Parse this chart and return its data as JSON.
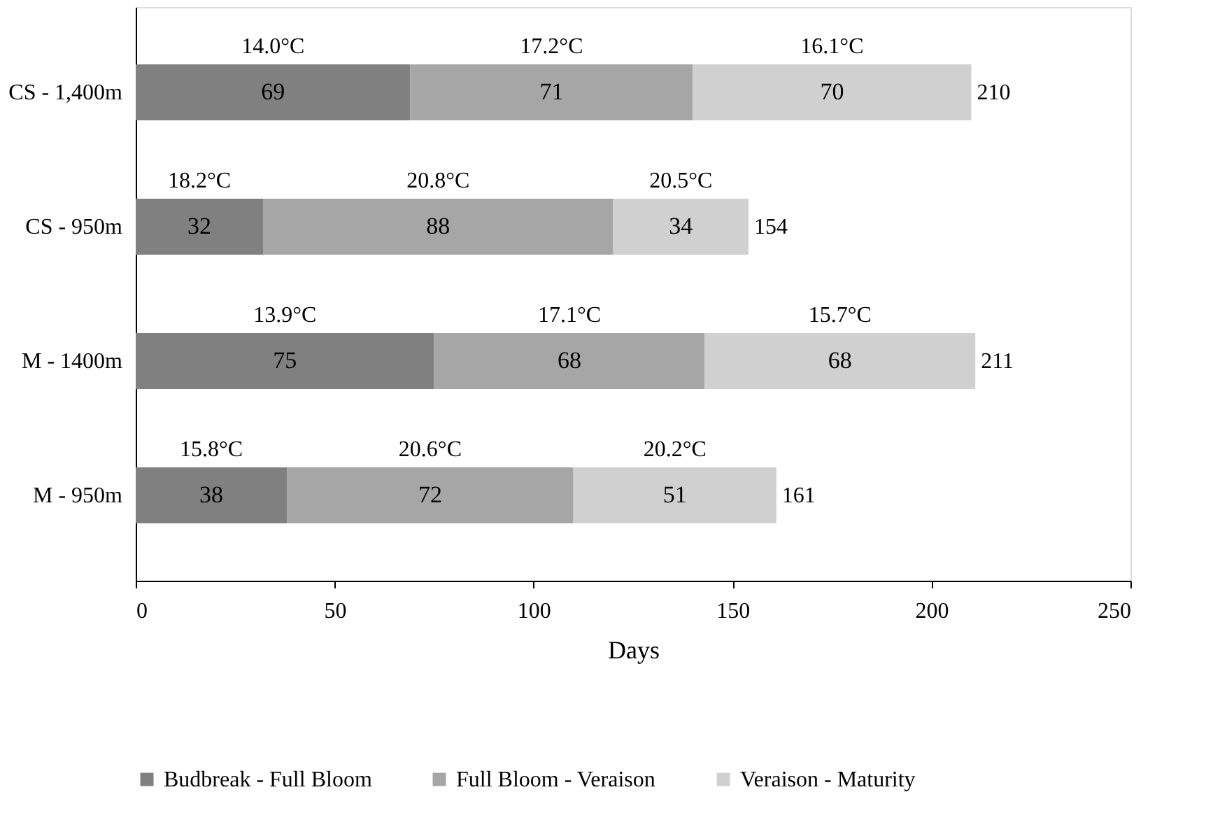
{
  "chart_data": {
    "type": "bar",
    "orientation": "horizontal",
    "stacked": true,
    "xlabel": "Days",
    "categories": [
      "CS - 1,400m",
      "CS - 950m",
      "M - 1400m",
      "M - 950m"
    ],
    "series": [
      {
        "name": "Budbreak - Full Bloom",
        "color": "#808080",
        "values": [
          69,
          32,
          75,
          38
        ]
      },
      {
        "name": "Full Bloom - Veraison",
        "color": "#a6a6a6",
        "values": [
          71,
          88,
          68,
          72
        ]
      },
      {
        "name": "Veraison - Maturity",
        "color": "#d0d0d0",
        "values": [
          70,
          34,
          68,
          51
        ]
      }
    ],
    "totals": [
      "210",
      "154",
      "211",
      "161"
    ],
    "data_labels": true,
    "xlim": [
      0,
      250
    ],
    "xticks": [
      0,
      50,
      100,
      150,
      200,
      250
    ],
    "grid": false,
    "legend": "bottom",
    "annotations": [
      "14.0°C",
      "17.2°C",
      "16.1°C",
      "18.2°C",
      "20.8°C",
      "20.5°C",
      "13.9°C",
      "17.1°C",
      "15.7°C",
      "15.8°C",
      "20.6°C",
      "20.2°C"
    ]
  }
}
